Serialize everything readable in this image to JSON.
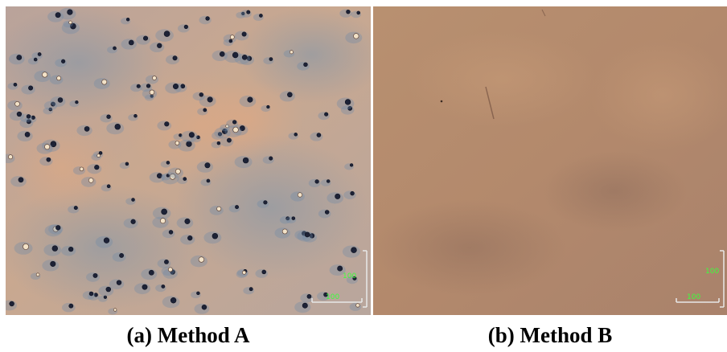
{
  "panels": [
    {
      "caption": "(a) Method A",
      "scale_bar_vertical_label": "100",
      "scale_bar_horizontal_label": "100"
    },
    {
      "caption": "(b) Method B",
      "scale_bar_vertical_label": "100",
      "scale_bar_horizontal_label": "100"
    }
  ],
  "colors": {
    "panel_a_background": "#c9a992",
    "panel_a_shading": "#8a9eb0",
    "panel_a_particles": "#1d2236",
    "panel_b_background": "#b48a6e",
    "scale_text": "#3cff3c"
  }
}
